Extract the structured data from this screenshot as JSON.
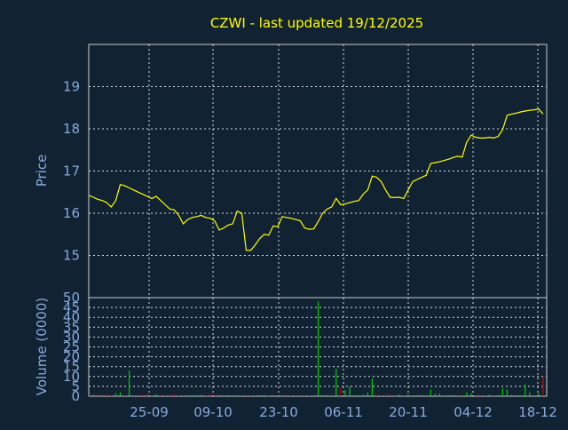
{
  "chart_data": [
    {
      "type": "line",
      "title": "CZWI - last updated 19/12/2025",
      "ylabel": "Price",
      "ylim": [
        14,
        20
      ],
      "yticks": [
        15,
        16,
        17,
        18,
        19
      ],
      "xticks": [
        "25-09",
        "09-10",
        "23-10",
        "06-11",
        "20-11",
        "04-12",
        "18-12"
      ],
      "grid": true,
      "colors": {
        "background": "#112233",
        "line": "#ffff00",
        "grid": "#dddddd",
        "axis_text": "#88aadd",
        "title": "#ffff00"
      },
      "series": [
        {
          "values": [
            16.42,
            16.38,
            16.33,
            16.3,
            16.25,
            16.15,
            16.3,
            16.68,
            16.65,
            16.6,
            16.55,
            16.5,
            16.45,
            16.4,
            16.35,
            16.4,
            16.3,
            16.2,
            16.1,
            16.08,
            15.95,
            15.75,
            15.85,
            15.9,
            15.92,
            15.95,
            15.9,
            15.88,
            15.82,
            15.6,
            15.65,
            15.72,
            15.75,
            16.05,
            16.0,
            15.12,
            15.12,
            15.25,
            15.4,
            15.5,
            15.48,
            15.7,
            15.68,
            15.92,
            15.9,
            15.88,
            15.85,
            15.82,
            15.65,
            15.62,
            15.63,
            15.8,
            16.0,
            16.1,
            16.15,
            16.35,
            16.2,
            16.22,
            16.25,
            16.28,
            16.3,
            16.45,
            16.55,
            16.88,
            16.85,
            16.75,
            16.55,
            16.38,
            16.37,
            16.38,
            16.35,
            16.55,
            16.75,
            16.8,
            16.85,
            16.9,
            17.18,
            17.2,
            17.22,
            17.25,
            17.28,
            17.32,
            17.35,
            17.33,
            17.68,
            17.85,
            17.8,
            17.78,
            17.78,
            17.8,
            17.78,
            17.82,
            17.98,
            18.32,
            18.35,
            18.37,
            18.4,
            18.42,
            18.44,
            18.45,
            18.47,
            18.35
          ]
        }
      ]
    },
    {
      "type": "bar",
      "ylabel": "Volume (0000)",
      "ylim": [
        0,
        50
      ],
      "yticks": [
        0,
        5,
        10,
        15,
        20,
        25,
        30,
        35,
        40,
        45,
        50
      ],
      "xticks": [
        "25-09",
        "09-10",
        "23-10",
        "06-11",
        "20-11",
        "04-12",
        "18-12"
      ],
      "grid": true,
      "colors": {
        "up": "#00cc00",
        "down": "#cc0000"
      },
      "series": [
        {
          "values": [
            0.3,
            0.8,
            1.2,
            0.5,
            1.0,
            0.4,
            1.5,
            2.0,
            0.5,
            13.0,
            0.6,
            0.4,
            0.8,
            1.2,
            0.5,
            1.0,
            0.7,
            0.4,
            0.6,
            1.0,
            0.5,
            0.8,
            0.4,
            0.6,
            0.5,
            0.7,
            0.4,
            1.2,
            0.8,
            0.6,
            0.4,
            0.5,
            0.3,
            0.6,
            0.4,
            0.5,
            0.3,
            0.4,
            0.5,
            0.6,
            0.4,
            0.3,
            0.5,
            0.4,
            0.8,
            0.6,
            0.4,
            0.5,
            0.3,
            0.6,
            0.4,
            48.0,
            0.5,
            0.6,
            0.4,
            14.0,
            4.0,
            3.0,
            5.0,
            0.6,
            0.4,
            0.8,
            2.0,
            9.0,
            1.0,
            0.5,
            0.6,
            1.0,
            0.4,
            0.8,
            0.6,
            1.0,
            0.4,
            0.5,
            0.6,
            0.4,
            3.5,
            1.2,
            1.5,
            0.4,
            0.6,
            0.5,
            0.4,
            0.8,
            2.0,
            1.5,
            0.5,
            0.6,
            0.4,
            0.8,
            0.5,
            0.6,
            4.0,
            3.5,
            0.8,
            0.5,
            0.4,
            6.0,
            2.0,
            0.6,
            1.5,
            10.0
          ],
          "directions": [
            "d",
            "u",
            "d",
            "u",
            "d",
            "d",
            "u",
            "u",
            "d",
            "u",
            "d",
            "d",
            "d",
            "d",
            "d",
            "u",
            "d",
            "d",
            "d",
            "d",
            "d",
            "d",
            "u",
            "u",
            "u",
            "u",
            "d",
            "d",
            "d",
            "u",
            "u",
            "u",
            "u",
            "u",
            "d",
            "d",
            "d",
            "u",
            "u",
            "u",
            "d",
            "u",
            "d",
            "u",
            "d",
            "d",
            "d",
            "d",
            "d",
            "d",
            "u",
            "u",
            "u",
            "u",
            "u",
            "u",
            "d",
            "u",
            "u",
            "u",
            "u",
            "u",
            "u",
            "u",
            "d",
            "d",
            "d",
            "d",
            "d",
            "u",
            "d",
            "u",
            "u",
            "u",
            "u",
            "u",
            "u",
            "u",
            "u",
            "u",
            "u",
            "u",
            "u",
            "d",
            "u",
            "u",
            "d",
            "d",
            "d",
            "u",
            "d",
            "u",
            "u",
            "u",
            "u",
            "u",
            "u",
            "u",
            "u",
            "u",
            "u",
            "d"
          ]
        }
      ]
    }
  ]
}
